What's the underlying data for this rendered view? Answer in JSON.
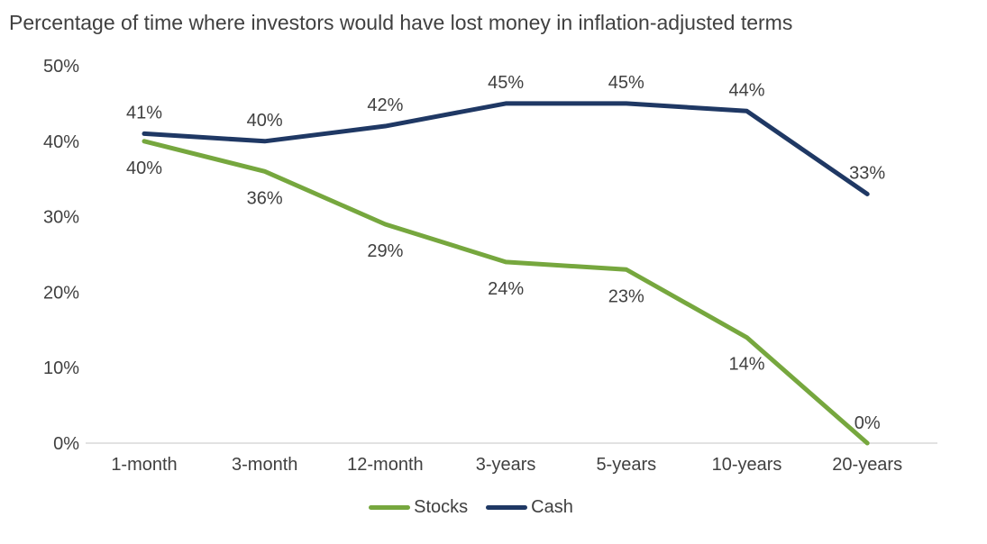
{
  "title": "Percentage of time where investors would have lost money in inflation-adjusted terms",
  "chart_data": {
    "type": "line",
    "title": "Percentage of time where investors would have lost money in inflation-adjusted terms",
    "categories": [
      "1-month",
      "3-month",
      "12-month",
      "3-years",
      "5-years",
      "10-years",
      "20-years"
    ],
    "series": [
      {
        "name": "Stocks",
        "color": "#76a73e",
        "values": [
          40,
          36,
          29,
          24,
          23,
          14,
          0
        ],
        "labels": [
          "40%",
          "36%",
          "29%",
          "24%",
          "23%",
          "14%",
          "0%"
        ]
      },
      {
        "name": "Cash",
        "color": "#1f3864",
        "values": [
          41,
          40,
          42,
          45,
          45,
          44,
          33
        ],
        "labels": [
          "41%",
          "40%",
          "42%",
          "45%",
          "45%",
          "44%",
          "33%"
        ]
      }
    ],
    "xlabel": "",
    "ylabel": "",
    "ylim": [
      0,
      50
    ],
    "yticks": [
      0,
      10,
      20,
      30,
      40,
      50
    ],
    "ytick_labels": [
      "0%",
      "10%",
      "20%",
      "30%",
      "40%",
      "50%"
    ],
    "grid": false,
    "legend_position": "bottom"
  },
  "colors": {
    "text": "#404040",
    "axis_line": "#d9d9d9",
    "stocks": "#76a73e",
    "cash": "#1f3864"
  }
}
